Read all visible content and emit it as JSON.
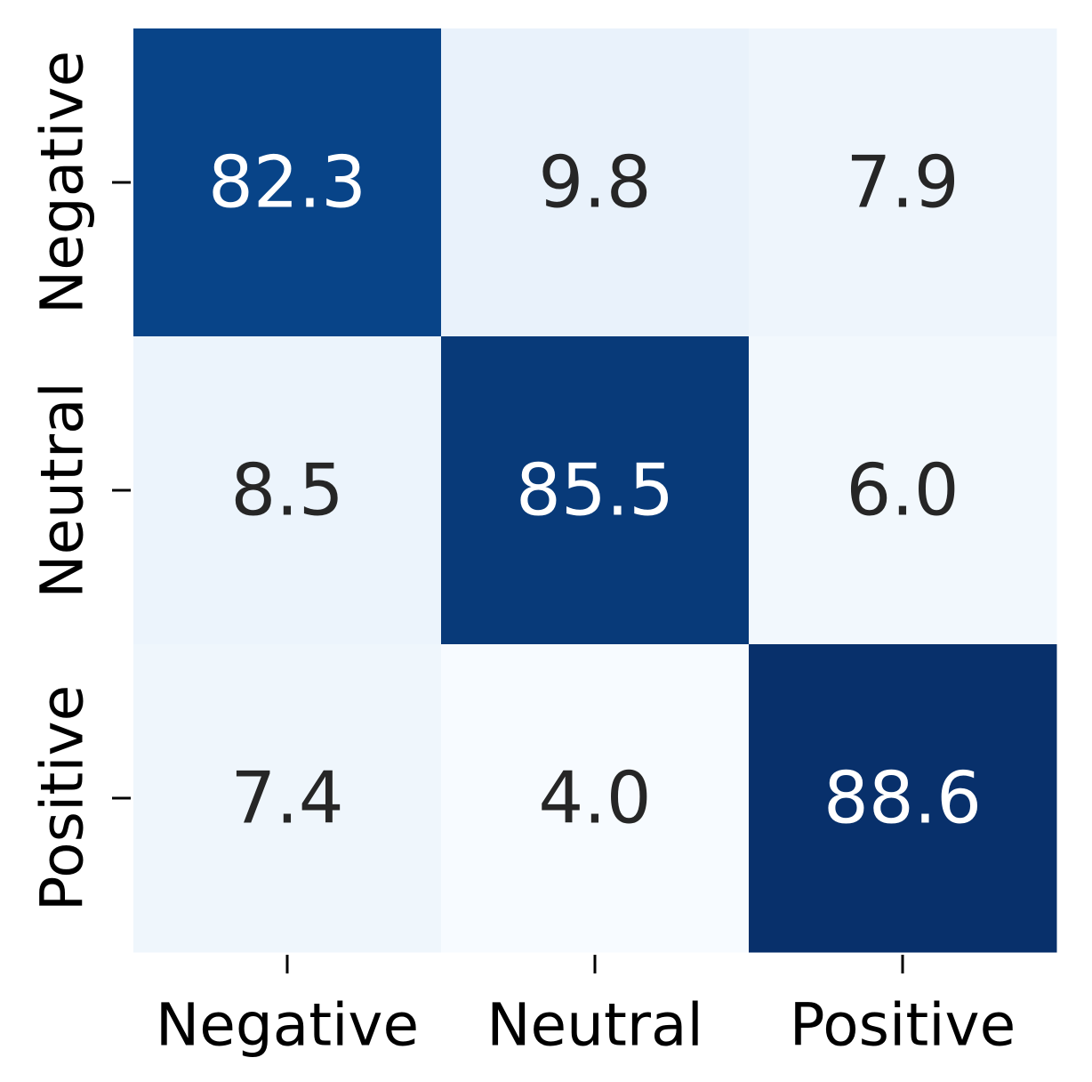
{
  "chart_data": {
    "type": "heatmap",
    "title": "",
    "xlabel": "",
    "ylabel": "",
    "x_categories": [
      "Negative",
      "Neutral",
      "Positive"
    ],
    "y_categories": [
      "Negative",
      "Neutral",
      "Positive"
    ],
    "values": [
      [
        82.3,
        9.8,
        7.9
      ],
      [
        8.5,
        85.5,
        6.0
      ],
      [
        7.4,
        4.0,
        88.6
      ]
    ],
    "value_range": [
      0,
      100
    ],
    "colormap": "Blues",
    "colors": {
      "low": "#f7fbff",
      "mid": "#6baed6",
      "high": "#08306b",
      "text_dark": "#262626",
      "text_light": "#ffffff"
    },
    "colorbar": false,
    "grid": false
  }
}
